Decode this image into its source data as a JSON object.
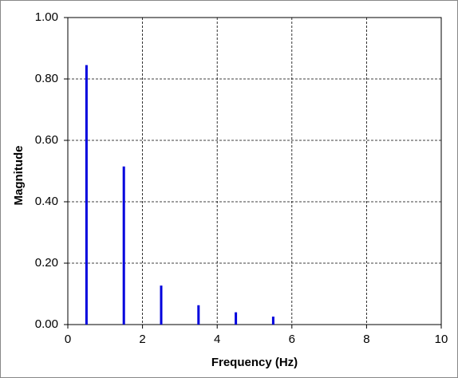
{
  "chart_data": {
    "type": "stem",
    "x_label": "Frequency  (Hz)",
    "y_label": "Magnitude",
    "x": [
      0.5,
      1.5,
      2.5,
      3.5,
      4.5,
      5.5
    ],
    "values": [
      0.845,
      0.515,
      0.127,
      0.063,
      0.04,
      0.026
    ],
    "color": "#0000dd",
    "xlim": [
      0,
      10
    ],
    "xticks": [
      0,
      2,
      4,
      6,
      8,
      10
    ],
    "ylim": [
      0,
      1
    ],
    "yticks": [
      {
        "value": 0,
        "label": "0.00"
      },
      {
        "value": 0.2,
        "label": "0.20"
      },
      {
        "value": 0.4,
        "label": "0.40"
      },
      {
        "value": 0.6,
        "label": "0.60"
      },
      {
        "value": 0.8,
        "label": "0.80"
      },
      {
        "value": 1,
        "label": "1.00"
      }
    ],
    "grid": true
  }
}
